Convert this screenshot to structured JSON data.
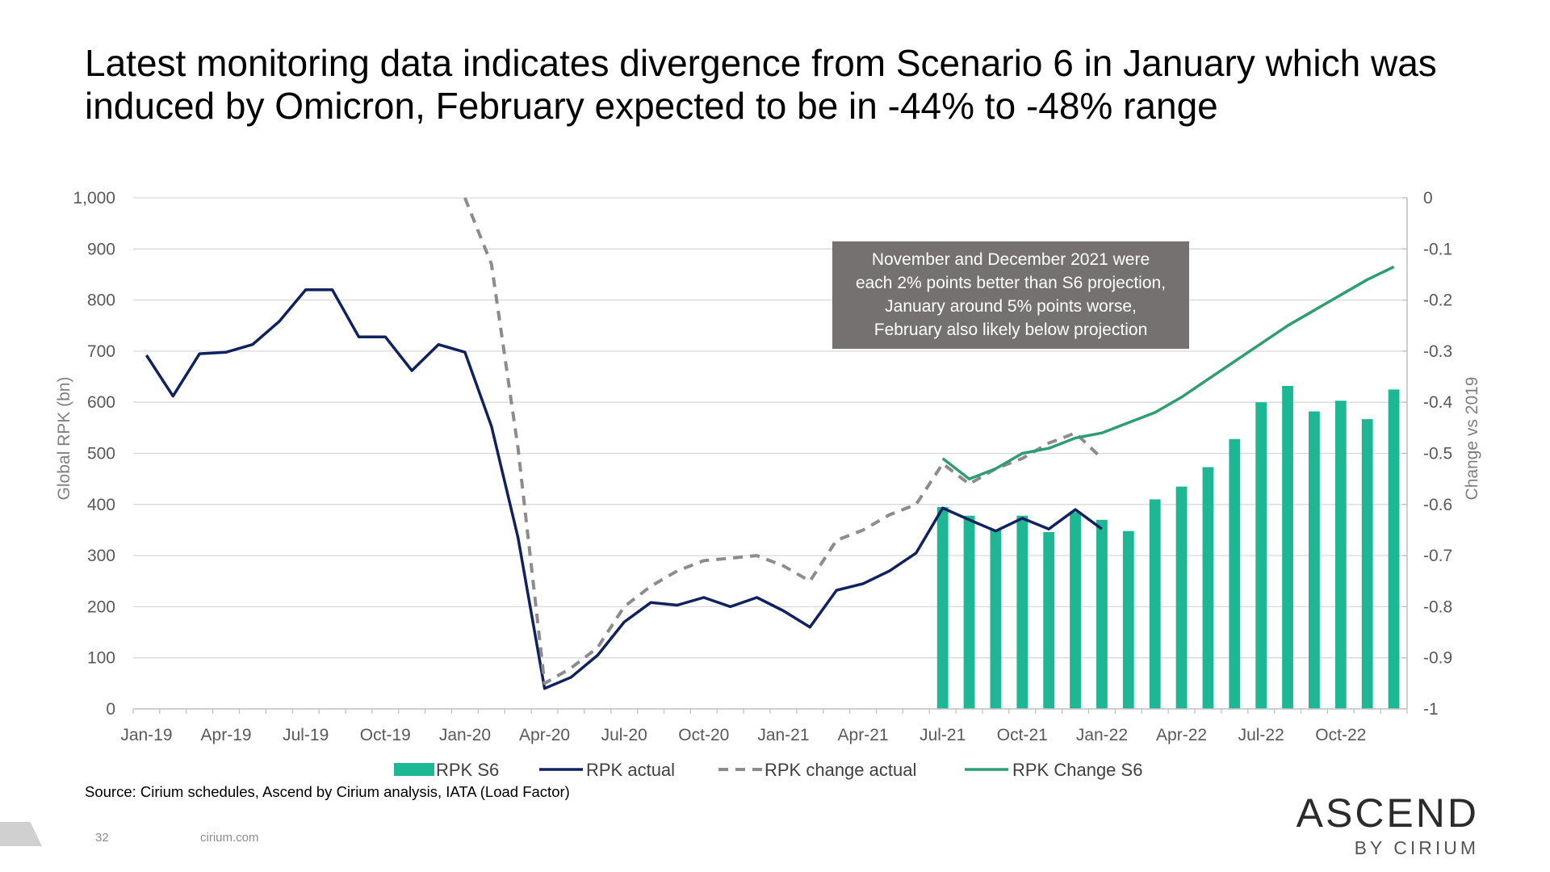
{
  "title": "Latest monitoring data indicates divergence from Scenario 6 in January which was induced by Omicron, February expected to be in -44% to -48% range",
  "source": "Source: Cirium schedules, Ascend by Cirium analysis, IATA (Load Factor)",
  "footer": {
    "page_number": "32",
    "url": "cirium.com"
  },
  "logo": {
    "main": "ASCEND",
    "sub": "BY CIRIUM"
  },
  "annotation": {
    "lines": [
      "November and December 2021 were",
      "each 2% points better than S6 projection,",
      "January around 5% points worse,",
      "February also likely below projection"
    ]
  },
  "colors": {
    "rpk_s6": "#1db893",
    "rpk_actual": "#10215f",
    "rpk_change_actual": "#8c8c8c",
    "rpk_change_s6": "#2e9e72",
    "grid": "#d9d9d9"
  },
  "chart_data": {
    "type": "bar",
    "categories": [
      "Jan-19",
      "Feb-19",
      "Mar-19",
      "Apr-19",
      "May-19",
      "Jun-19",
      "Jul-19",
      "Aug-19",
      "Sep-19",
      "Oct-19",
      "Nov-19",
      "Dec-19",
      "Jan-20",
      "Feb-20",
      "Mar-20",
      "Apr-20",
      "May-20",
      "Jun-20",
      "Jul-20",
      "Aug-20",
      "Sep-20",
      "Oct-20",
      "Nov-20",
      "Dec-20",
      "Jan-21",
      "Feb-21",
      "Mar-21",
      "Apr-21",
      "May-21",
      "Jun-21",
      "Jul-21",
      "Aug-21",
      "Sep-21",
      "Oct-21",
      "Nov-21",
      "Dec-21",
      "Jan-22",
      "Feb-22",
      "Mar-22",
      "Apr-22",
      "May-22",
      "Jun-22",
      "Jul-22",
      "Aug-22",
      "Sep-22",
      "Oct-22",
      "Nov-22",
      "Dec-22"
    ],
    "x_tick_labels": [
      "Jan-19",
      "Apr-19",
      "Jul-19",
      "Oct-19",
      "Jan-20",
      "Apr-20",
      "Jul-20",
      "Oct-20",
      "Jan-21",
      "Apr-21",
      "Jul-21",
      "Oct-21",
      "Jan-22",
      "Apr-22",
      "Jul-22",
      "Oct-22"
    ],
    "ylabel": "Global RPK (bn)",
    "ylim": [
      0,
      1000
    ],
    "y_ticks": [
      "0",
      "100",
      "200",
      "300",
      "400",
      "500",
      "600",
      "700",
      "800",
      "900",
      "1,000"
    ],
    "y2label": "Change vs 2019",
    "y2lim": [
      -1,
      0
    ],
    "y2_ticks": [
      "-1",
      "-0.9",
      "-0.8",
      "-0.7",
      "-0.6",
      "-0.5",
      "-0.4",
      "-0.3",
      "-0.2",
      "-0.1",
      "0"
    ],
    "legend_position": "bottom",
    "grid": true,
    "series": [
      {
        "name": "RPK S6",
        "type": "bar",
        "axis": "left",
        "values": [
          null,
          null,
          null,
          null,
          null,
          null,
          null,
          null,
          null,
          null,
          null,
          null,
          null,
          null,
          null,
          null,
          null,
          null,
          null,
          null,
          null,
          null,
          null,
          null,
          null,
          null,
          null,
          null,
          null,
          null,
          395,
          378,
          350,
          378,
          346,
          385,
          370,
          348,
          410,
          435,
          473,
          528,
          600,
          632,
          582,
          603,
          567,
          625
        ]
      },
      {
        "name": "RPK actual",
        "type": "line",
        "axis": "left",
        "values": [
          692,
          612,
          695,
          698,
          713,
          758,
          820,
          820,
          728,
          728,
          662,
          713,
          698,
          553,
          335,
          40,
          62,
          105,
          170,
          208,
          203,
          218,
          200,
          218,
          192,
          160,
          232,
          245,
          270,
          305,
          393,
          370,
          348,
          373,
          352,
          390,
          352,
          null,
          null,
          null,
          null,
          null,
          null,
          null,
          null,
          null,
          null,
          null
        ]
      },
      {
        "name": "RPK change actual",
        "type": "line",
        "axis": "right",
        "style": "dashed",
        "values": [
          null,
          null,
          null,
          null,
          null,
          null,
          null,
          null,
          null,
          null,
          null,
          null,
          0,
          -0.13,
          -0.49,
          -0.95,
          -0.92,
          -0.88,
          -0.8,
          -0.76,
          -0.73,
          -0.71,
          -0.705,
          -0.7,
          -0.72,
          -0.75,
          -0.67,
          -0.65,
          -0.62,
          -0.6,
          -0.52,
          -0.56,
          -0.53,
          -0.51,
          -0.48,
          -0.46,
          -0.51,
          null,
          null,
          null,
          null,
          null,
          null,
          null,
          null,
          null,
          null,
          null
        ]
      },
      {
        "name": "RPK Change S6",
        "type": "line",
        "axis": "right",
        "values": [
          null,
          null,
          null,
          null,
          null,
          null,
          null,
          null,
          null,
          null,
          null,
          null,
          null,
          null,
          null,
          null,
          null,
          null,
          null,
          null,
          null,
          null,
          null,
          null,
          null,
          null,
          null,
          null,
          null,
          null,
          -0.51,
          -0.55,
          -0.53,
          -0.5,
          -0.49,
          -0.47,
          -0.46,
          -0.44,
          -0.42,
          -0.39,
          -0.355,
          -0.32,
          -0.285,
          -0.25,
          -0.22,
          -0.19,
          -0.16,
          -0.135
        ]
      }
    ]
  }
}
